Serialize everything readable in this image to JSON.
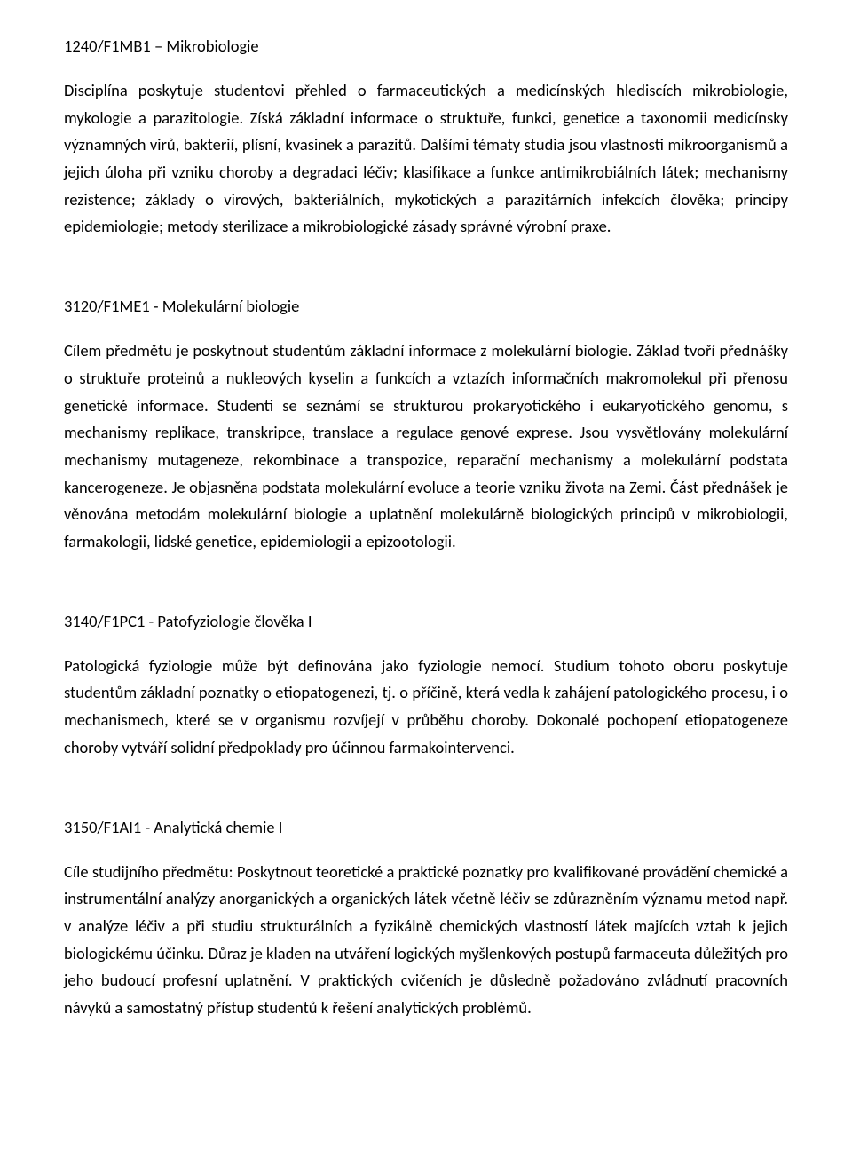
{
  "page": {
    "background_color": "#ffffff",
    "text_color": "#000000",
    "font_family": "Calibri, Segoe UI, Arial, sans-serif",
    "body_fontsize": 18.5,
    "line_height": 1.66,
    "text_align": "justify"
  },
  "sections": [
    {
      "code_title": "1240/F1MB1 – Mikrobiologie",
      "body": "Disciplína poskytuje studentovi přehled o farmaceutických a medicínských hlediscích mikrobiologie, mykologie a parazitologie. Získá základní informace o struktuře, funkci, genetice a taxonomii medicínsky významných virů, bakterií, plísní, kvasinek a parazitů. Dalšími tématy studia jsou vlastnosti mikroorganismů a jejich úloha při vzniku choroby a degradaci léčiv; klasifikace a funkce antimikrobiálních látek; mechanismy rezistence; základy o virových, bakteriálních, mykotických a parazitárních infekcích člověka; principy epidemiologie; metody sterilizace a mikrobiologické zásady správné výrobní praxe."
    },
    {
      "code_title": "3120/F1ME1 - Molekulární biologie",
      "body": "Cílem předmětu je poskytnout studentům základní informace z molekulární biologie. Základ tvoří přednášky o struktuře proteinů a nukleových kyselin a funkcích a vztazích informačních makromolekul při přenosu genetické informace. Studenti se seznámí se strukturou prokaryotického i eukaryotického genomu, s mechanismy replikace, transkripce, translace a regulace genové exprese. Jsou vysvětlovány molekulární mechanismy mutageneze, rekombinace a transpozice, reparační mechanismy a molekulární podstata kancerogeneze. Je objasněna podstata molekulární evoluce a teorie vzniku života na Zemi. Část přednášek je věnována metodám molekulární biologie a uplatnění molekulárně biologických principů v mikrobiologii, farmakologii, lidské genetice, epidemiologii a epizootologii."
    },
    {
      "code_title": "3140/F1PC1 - Patofyziologie člověka I",
      "body": "Patologická fyziologie může být definována jako fyziologie nemocí. Studium tohoto oboru poskytuje studentům základní poznatky o etiopatogenezi, tj. o příčině, která vedla k zahájení patologického procesu, i o mechanismech, které se v organismu rozvíjejí v průběhu choroby. Dokonalé pochopení etiopatogeneze choroby vytváří solidní předpoklady pro účinnou farmakointervenci."
    },
    {
      "code_title": "3150/F1AI1 - Analytická chemie I",
      "body": "Cíle studijního předmětu: Poskytnout teoretické a praktické poznatky pro kvalifikované provádění chemické a instrumentální analýzy anorganických a organických látek včetně léčiv se zdůrazněním významu metod např. v analýze léčiv a při studiu strukturálních a fyzikálně chemických vlastností látek majících vztah k jejich biologickému účinku. Důraz je kladen na utváření logických myšlenkových postupů farmaceuta důležitých pro jeho budoucí profesní uplatnění. V praktických cvičeních je důsledně požadováno zvládnutí pracovních návyků a samostatný přístup studentů k řešení analytických problémů."
    }
  ]
}
